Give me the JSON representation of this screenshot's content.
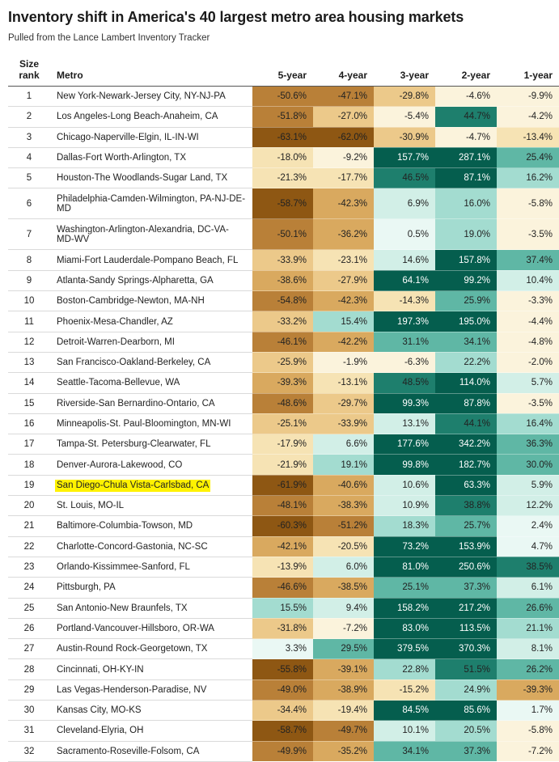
{
  "title": "Inventory shift in America's 40 largest metro area housing markets",
  "subtitle": "Pulled from the Lance Lambert Inventory Tracker",
  "chart_data": {
    "type": "table",
    "columns": [
      "Size rank",
      "Metro",
      "5-year",
      "4-year",
      "3-year",
      "2-year",
      "1-year"
    ],
    "rows": [
      {
        "rank": "1",
        "metro": "New York-Newark-Jersey City, NY-NJ-PA",
        "values": [
          "-50.6%",
          "-47.1%",
          "-29.8%",
          "-4.6%",
          "-9.9%"
        ]
      },
      {
        "rank": "2",
        "metro": "Los Angeles-Long Beach-Anaheim, CA",
        "values": [
          "-51.8%",
          "-27.0%",
          "-5.4%",
          "44.7%",
          "-4.2%"
        ]
      },
      {
        "rank": "3",
        "metro": "Chicago-Naperville-Elgin, IL-IN-WI",
        "values": [
          "-63.1%",
          "-62.0%",
          "-30.9%",
          "-4.7%",
          "-13.4%"
        ]
      },
      {
        "rank": "4",
        "metro": "Dallas-Fort Worth-Arlington, TX",
        "values": [
          "-18.0%",
          "-9.2%",
          "157.7%",
          "287.1%",
          "25.4%"
        ]
      },
      {
        "rank": "5",
        "metro": "Houston-The Woodlands-Sugar Land, TX",
        "values": [
          "-21.3%",
          "-17.7%",
          "46.5%",
          "87.1%",
          "16.2%"
        ]
      },
      {
        "rank": "6",
        "metro": "Philadelphia-Camden-Wilmington, PA-NJ-DE-MD",
        "values": [
          "-58.7%",
          "-42.3%",
          "6.9%",
          "16.0%",
          "-5.8%"
        ]
      },
      {
        "rank": "7",
        "metro": "Washington-Arlington-Alexandria, DC-VA-MD-WV",
        "values": [
          "-50.1%",
          "-36.2%",
          "0.5%",
          "19.0%",
          "-3.5%"
        ]
      },
      {
        "rank": "8",
        "metro": "Miami-Fort Lauderdale-Pompano Beach, FL",
        "values": [
          "-33.9%",
          "-23.1%",
          "14.6%",
          "157.8%",
          "37.4%"
        ]
      },
      {
        "rank": "9",
        "metro": "Atlanta-Sandy Springs-Alpharetta, GA",
        "values": [
          "-38.6%",
          "-27.9%",
          "64.1%",
          "99.2%",
          "10.4%"
        ]
      },
      {
        "rank": "10",
        "metro": "Boston-Cambridge-Newton, MA-NH",
        "values": [
          "-54.8%",
          "-42.3%",
          "-14.3%",
          "25.9%",
          "-3.3%"
        ]
      },
      {
        "rank": "11",
        "metro": "Phoenix-Mesa-Chandler, AZ",
        "values": [
          "-33.2%",
          "15.4%",
          "197.3%",
          "195.0%",
          "-4.4%"
        ]
      },
      {
        "rank": "12",
        "metro": "Detroit-Warren-Dearborn, MI",
        "values": [
          "-46.1%",
          "-42.2%",
          "31.1%",
          "34.1%",
          "-4.8%"
        ]
      },
      {
        "rank": "13",
        "metro": "San Francisco-Oakland-Berkeley, CA",
        "values": [
          "-25.9%",
          "-1.9%",
          "-6.3%",
          "22.2%",
          "-2.0%"
        ]
      },
      {
        "rank": "14",
        "metro": "Seattle-Tacoma-Bellevue, WA",
        "values": [
          "-39.3%",
          "-13.1%",
          "48.5%",
          "114.0%",
          "5.7%"
        ]
      },
      {
        "rank": "15",
        "metro": "Riverside-San Bernardino-Ontario, CA",
        "values": [
          "-48.6%",
          "-29.7%",
          "99.3%",
          "87.8%",
          "-3.5%"
        ]
      },
      {
        "rank": "16",
        "metro": "Minneapolis-St. Paul-Bloomington, MN-WI",
        "values": [
          "-25.1%",
          "-33.9%",
          "13.1%",
          "44.1%",
          "16.4%"
        ]
      },
      {
        "rank": "17",
        "metro": "Tampa-St. Petersburg-Clearwater, FL",
        "values": [
          "-17.9%",
          "6.6%",
          "177.6%",
          "342.2%",
          "36.3%"
        ]
      },
      {
        "rank": "18",
        "metro": "Denver-Aurora-Lakewood, CO",
        "values": [
          "-21.9%",
          "19.1%",
          "99.8%",
          "182.7%",
          "30.0%"
        ]
      },
      {
        "rank": "19",
        "metro": "San Diego-Chula Vista-Carlsbad, CA",
        "values": [
          "-61.9%",
          "-40.6%",
          "10.6%",
          "63.3%",
          "5.9%"
        ],
        "highlighted": true
      },
      {
        "rank": "20",
        "metro": "St. Louis, MO-IL",
        "values": [
          "-48.1%",
          "-38.3%",
          "10.9%",
          "38.8%",
          "12.2%"
        ]
      },
      {
        "rank": "21",
        "metro": "Baltimore-Columbia-Towson, MD",
        "values": [
          "-60.3%",
          "-51.2%",
          "18.3%",
          "25.7%",
          "2.4%"
        ]
      },
      {
        "rank": "22",
        "metro": "Charlotte-Concord-Gastonia, NC-SC",
        "values": [
          "-42.1%",
          "-20.5%",
          "73.2%",
          "153.9%",
          "4.7%"
        ]
      },
      {
        "rank": "23",
        "metro": "Orlando-Kissimmee-Sanford, FL",
        "values": [
          "-13.9%",
          "6.0%",
          "81.0%",
          "250.6%",
          "38.5%"
        ]
      },
      {
        "rank": "24",
        "metro": "Pittsburgh, PA",
        "values": [
          "-46.6%",
          "-38.5%",
          "25.1%",
          "37.3%",
          "6.1%"
        ]
      },
      {
        "rank": "25",
        "metro": "San Antonio-New Braunfels, TX",
        "values": [
          "15.5%",
          "9.4%",
          "158.2%",
          "217.2%",
          "26.6%"
        ]
      },
      {
        "rank": "26",
        "metro": "Portland-Vancouver-Hillsboro, OR-WA",
        "values": [
          "-31.8%",
          "-7.2%",
          "83.0%",
          "113.5%",
          "21.1%"
        ]
      },
      {
        "rank": "27",
        "metro": "Austin-Round Rock-Georgetown, TX",
        "values": [
          "3.3%",
          "29.5%",
          "379.5%",
          "370.3%",
          "8.1%"
        ]
      },
      {
        "rank": "28",
        "metro": "Cincinnati, OH-KY-IN",
        "values": [
          "-55.8%",
          "-39.1%",
          "22.8%",
          "51.5%",
          "26.2%"
        ]
      },
      {
        "rank": "29",
        "metro": "Las Vegas-Henderson-Paradise, NV",
        "values": [
          "-49.0%",
          "-38.9%",
          "-15.2%",
          "24.9%",
          "-39.3%"
        ]
      },
      {
        "rank": "30",
        "metro": "Kansas City, MO-KS",
        "values": [
          "-34.4%",
          "-19.4%",
          "84.5%",
          "85.6%",
          "1.7%"
        ]
      },
      {
        "rank": "31",
        "metro": "Cleveland-Elyria, OH",
        "values": [
          "-58.7%",
          "-49.7%",
          "10.1%",
          "20.5%",
          "-5.8%"
        ]
      },
      {
        "rank": "32",
        "metro": "Sacramento-Roseville-Folsom, CA",
        "values": [
          "-49.9%",
          "-35.2%",
          "34.1%",
          "37.3%",
          "-7.2%"
        ]
      }
    ]
  },
  "colors": {
    "highlight": "#fff200",
    "negative_scale": [
      "#fbf3dc",
      "#f6e3b4",
      "#ecc98a",
      "#d9a95f",
      "#b98038",
      "#8e5713"
    ],
    "positive_scale": [
      "#eaf8f4",
      "#d2efe7",
      "#a3dcd0",
      "#5fb7a5",
      "#1e7f6d",
      "#055e4e"
    ]
  }
}
